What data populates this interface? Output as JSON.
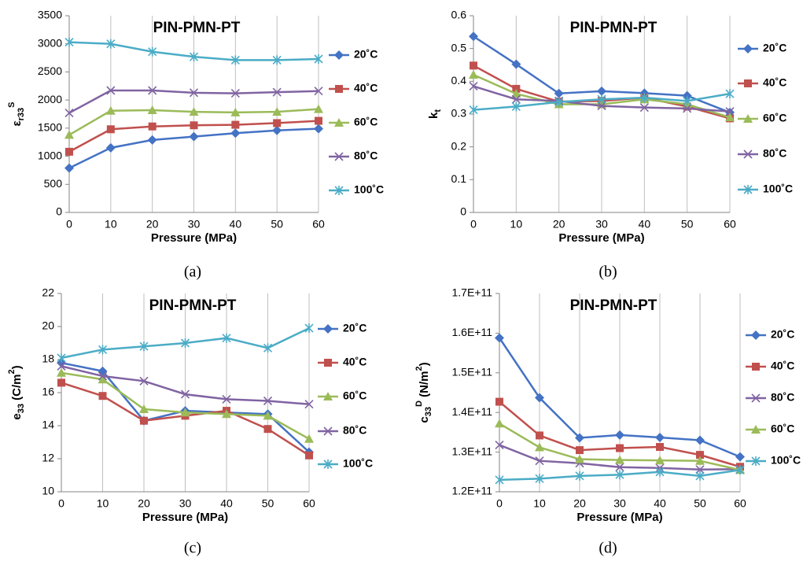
{
  "chart_data": [
    {
      "type": "line",
      "title": "PIN-PMN-PT",
      "panel": "(a)",
      "xlabel": "Pressure (MPa)",
      "ylabel": [
        "ε",
        "r33",
        "S"
      ],
      "x": [
        0,
        10,
        20,
        30,
        40,
        50,
        60
      ],
      "xlim": [
        0,
        60
      ],
      "xticks": [
        0,
        10,
        20,
        30,
        40,
        50,
        60
      ],
      "ylim": [
        0,
        3500
      ],
      "yticks": [
        0,
        500,
        1000,
        1500,
        2000,
        2500,
        3000,
        3500
      ],
      "grid": true,
      "legend": "right",
      "series": [
        {
          "name": "20˚C",
          "color": "#4472c4",
          "marker": "diamond",
          "values": [
            790,
            1150,
            1290,
            1350,
            1410,
            1460,
            1490
          ]
        },
        {
          "name": "40˚C",
          "color": "#c0504d",
          "marker": "square",
          "values": [
            1080,
            1480,
            1530,
            1550,
            1560,
            1590,
            1630
          ]
        },
        {
          "name": "60˚C",
          "color": "#9bbb59",
          "marker": "triangle",
          "values": [
            1380,
            1810,
            1820,
            1790,
            1780,
            1790,
            1840
          ]
        },
        {
          "name": "80˚C",
          "color": "#8064a2",
          "marker": "x",
          "values": [
            1770,
            2170,
            2170,
            2130,
            2120,
            2140,
            2160
          ]
        },
        {
          "name": "100˚C",
          "color": "#4bacc6",
          "marker": "star",
          "values": [
            3030,
            3000,
            2860,
            2770,
            2710,
            2710,
            2730
          ]
        }
      ]
    },
    {
      "type": "line",
      "title": "PIN-PMN-PT",
      "panel": "(b)",
      "xlabel": "Pressure (MPa)",
      "ylabel": [
        "k",
        "t"
      ],
      "x": [
        0,
        10,
        20,
        30,
        40,
        50,
        60
      ],
      "xlim": [
        0,
        60
      ],
      "xticks": [
        0,
        10,
        20,
        30,
        40,
        50,
        60
      ],
      "ylim": [
        0,
        0.6
      ],
      "yticks": [
        0,
        0.1,
        0.2,
        0.3,
        0.4,
        0.5,
        0.6
      ],
      "grid": true,
      "legend": "right",
      "series": [
        {
          "name": "20˚C",
          "color": "#4472c4",
          "marker": "diamond",
          "values": [
            0.537,
            0.452,
            0.363,
            0.37,
            0.364,
            0.356,
            0.305
          ]
        },
        {
          "name": "40˚C",
          "color": "#c0504d",
          "marker": "square",
          "values": [
            0.448,
            0.377,
            0.338,
            0.34,
            0.35,
            0.323,
            0.287
          ]
        },
        {
          "name": "60˚C",
          "color": "#9bbb59",
          "marker": "triangle",
          "values": [
            0.42,
            0.362,
            0.33,
            0.33,
            0.345,
            0.33,
            0.29
          ]
        },
        {
          "name": "80˚C",
          "color": "#8064a2",
          "marker": "x",
          "values": [
            0.385,
            0.345,
            0.34,
            0.325,
            0.32,
            0.317,
            0.308
          ]
        },
        {
          "name": "100˚C",
          "color": "#4bacc6",
          "marker": "star",
          "values": [
            0.313,
            0.323,
            0.337,
            0.345,
            0.35,
            0.34,
            0.362
          ]
        }
      ]
    },
    {
      "type": "line",
      "title": "PIN-PMN-PT",
      "panel": "(c)",
      "xlabel": "Pressure (MPa)",
      "ylabel": [
        "e",
        "33",
        " (C/m",
        "2",
        ")"
      ],
      "x": [
        0,
        10,
        20,
        30,
        40,
        50,
        60
      ],
      "xlim": [
        0,
        60
      ],
      "xticks": [
        0,
        10,
        20,
        30,
        40,
        50,
        60
      ],
      "ylim": [
        10,
        22
      ],
      "yticks": [
        10,
        12,
        14,
        16,
        18,
        20,
        22
      ],
      "grid": true,
      "legend": "right",
      "series": [
        {
          "name": "20˚C",
          "color": "#4472c4",
          "marker": "diamond",
          "values": [
            17.8,
            17.3,
            14.3,
            14.9,
            14.8,
            14.7,
            12.4
          ]
        },
        {
          "name": "40˚C",
          "color": "#c0504d",
          "marker": "square",
          "values": [
            16.6,
            15.8,
            14.3,
            14.6,
            14.9,
            13.8,
            12.2
          ]
        },
        {
          "name": "60˚C",
          "color": "#9bbb59",
          "marker": "triangle",
          "values": [
            17.2,
            16.8,
            15.0,
            14.8,
            14.7,
            14.6,
            13.2
          ]
        },
        {
          "name": "80˚C",
          "color": "#8064a2",
          "marker": "x",
          "values": [
            17.6,
            17.0,
            16.7,
            15.9,
            15.6,
            15.5,
            15.3
          ]
        },
        {
          "name": "100˚C",
          "color": "#4bacc6",
          "marker": "star",
          "values": [
            18.1,
            18.6,
            18.8,
            19.0,
            19.3,
            18.7,
            19.9
          ]
        }
      ]
    },
    {
      "type": "line",
      "title": "PIN-PMN-PT",
      "panel": "(d)",
      "xlabel": "Pressure (MPa)",
      "ylabel": [
        "c",
        "33",
        "D",
        " (N/m",
        "2",
        ")"
      ],
      "x": [
        0,
        10,
        20,
        30,
        40,
        50,
        60
      ],
      "xlim": [
        0,
        60
      ],
      "xticks": [
        0,
        10,
        20,
        30,
        40,
        50,
        60
      ],
      "ylim": [
        120000000000,
        170000000000
      ],
      "yticks": [
        {
          "value": 120000000000,
          "label": "1.2E+11"
        },
        {
          "value": 130000000000,
          "label": "1.3E+11"
        },
        {
          "value": 140000000000,
          "label": "1.4E+11"
        },
        {
          "value": 150000000000,
          "label": "1.5E+11"
        },
        {
          "value": 160000000000,
          "label": "1.6E+11"
        },
        {
          "value": 170000000000,
          "label": "1.7E+11"
        }
      ],
      "grid": true,
      "legend": "right",
      "series": [
        {
          "name": "20˚C",
          "color": "#4472c4",
          "marker": "diamond",
          "values": [
            158800000000,
            143700000000,
            133600000000,
            134300000000,
            133700000000,
            133000000000,
            128800000000
          ]
        },
        {
          "name": "40˚C",
          "color": "#c0504d",
          "marker": "square",
          "values": [
            142700000000,
            134200000000,
            130500000000,
            131000000000,
            131300000000,
            129300000000,
            126300000000
          ]
        },
        {
          "name": "80˚C",
          "color": "#8064a2",
          "marker": "x",
          "values": [
            131800000000,
            127800000000,
            127200000000,
            126200000000,
            126000000000,
            125600000000,
            125700000000
          ]
        },
        {
          "name": "60˚C",
          "color": "#9bbb59",
          "marker": "triangle",
          "values": [
            137200000000,
            131200000000,
            128200000000,
            128000000000,
            127900000000,
            127800000000,
            125500000000
          ]
        },
        {
          "name": "100˚C",
          "color": "#4bacc6",
          "marker": "star",
          "values": [
            123000000000,
            123300000000,
            124000000000,
            124300000000,
            125000000000,
            124000000000,
            125500000000
          ]
        }
      ]
    }
  ]
}
